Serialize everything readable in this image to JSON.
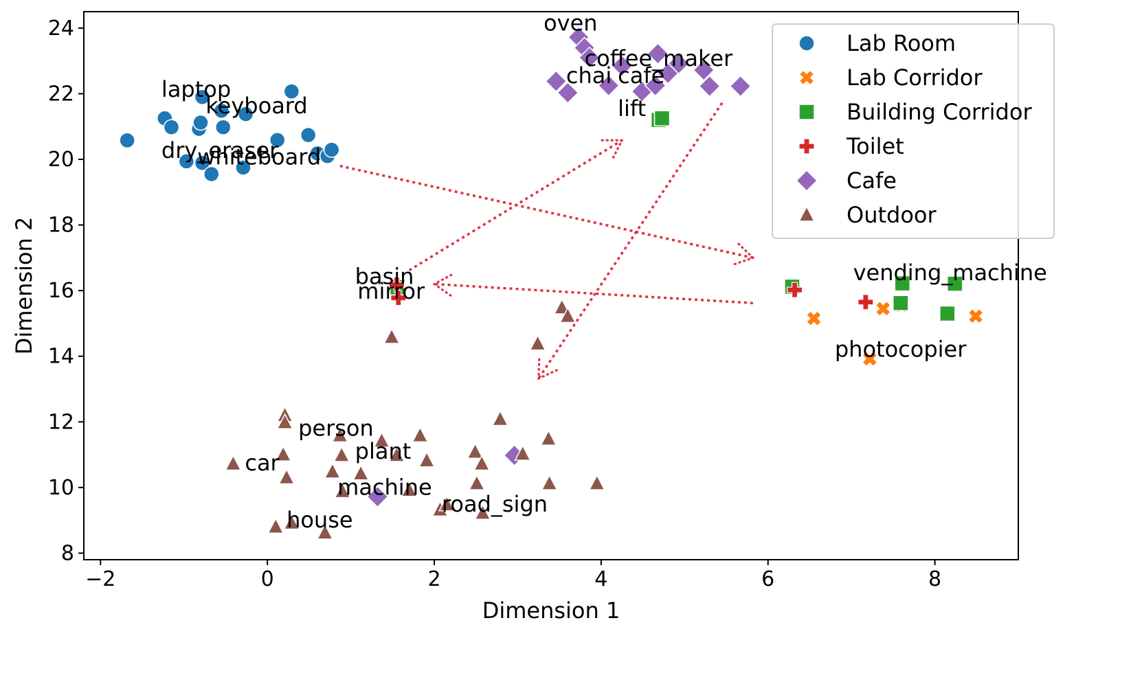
{
  "chart_data": {
    "type": "scatter",
    "title": "",
    "xlabel": "Dimension 1",
    "ylabel": "Dimension 2",
    "xlim": [
      -2.2,
      9.0
    ],
    "ylim": [
      7.8,
      24.5
    ],
    "xticks": [
      -2,
      0,
      2,
      4,
      6,
      8
    ],
    "xtick_labels": [
      "−2",
      "0",
      "2",
      "4",
      "6",
      "8"
    ],
    "yticks": [
      8,
      10,
      12,
      14,
      16,
      18,
      20,
      22,
      24
    ],
    "ytick_labels": [
      "8",
      "10",
      "12",
      "14",
      "16",
      "18",
      "20",
      "22",
      "24"
    ],
    "grid": false,
    "legend_position": "top-right",
    "series": [
      {
        "name": "Lab Room",
        "marker": "circle",
        "color": "#1f77b4",
        "points": [
          [
            -1.68,
            20.58
          ],
          [
            -1.23,
            21.25
          ],
          [
            -1.15,
            20.98
          ],
          [
            -0.97,
            19.94
          ],
          [
            -0.82,
            20.93
          ],
          [
            -0.8,
            21.12
          ],
          [
            -0.78,
            21.9
          ],
          [
            -0.78,
            19.89
          ],
          [
            -0.67,
            19.55
          ],
          [
            -0.55,
            21.48
          ],
          [
            -0.53,
            20.98
          ],
          [
            -0.29,
            19.75
          ],
          [
            -0.26,
            21.38
          ],
          [
            0.12,
            20.59
          ],
          [
            0.29,
            22.07
          ],
          [
            0.49,
            20.74
          ],
          [
            0.6,
            20.18
          ],
          [
            0.72,
            20.1
          ],
          [
            0.77,
            20.29
          ]
        ]
      },
      {
        "name": "Lab Corridor",
        "marker": "x",
        "color": "#ff7f0e",
        "points": [
          [
            6.55,
            15.15
          ],
          [
            7.22,
            13.92
          ],
          [
            7.38,
            15.45
          ],
          [
            7.6,
            15.55
          ],
          [
            8.49,
            15.22
          ]
        ]
      },
      {
        "name": "Building Corridor",
        "marker": "square",
        "color": "#2ca02c",
        "points": [
          [
            4.69,
            21.2
          ],
          [
            4.73,
            21.25
          ],
          [
            1.56,
            16.1
          ],
          [
            6.29,
            16.12
          ],
          [
            7.61,
            16.22
          ],
          [
            7.59,
            15.62
          ],
          [
            8.15,
            15.3
          ],
          [
            8.24,
            16.21
          ]
        ]
      },
      {
        "name": "Toilet",
        "marker": "plus",
        "color": "#d62728",
        "points": [
          [
            1.55,
            16.18
          ],
          [
            1.57,
            15.78
          ],
          [
            6.32,
            16.02
          ],
          [
            7.17,
            15.65
          ]
        ]
      },
      {
        "name": "Cafe",
        "marker": "diamond",
        "color": "#9467bd",
        "points": [
          [
            3.73,
            23.72
          ],
          [
            3.8,
            23.4
          ],
          [
            3.86,
            23.1
          ],
          [
            3.46,
            22.38
          ],
          [
            3.6,
            22.03
          ],
          [
            4.09,
            22.25
          ],
          [
            4.25,
            22.85
          ],
          [
            4.49,
            22.07
          ],
          [
            4.65,
            22.25
          ],
          [
            4.68,
            23.22
          ],
          [
            4.8,
            22.62
          ],
          [
            4.93,
            22.92
          ],
          [
            5.23,
            22.72
          ],
          [
            5.3,
            22.23
          ],
          [
            5.67,
            22.23
          ],
          [
            1.32,
            9.72
          ],
          [
            2.96,
            10.98
          ]
        ]
      },
      {
        "name": "Outdoor",
        "marker": "triangle",
        "color": "#8c564b",
        "points": [
          [
            -0.41,
            10.72
          ],
          [
            0.1,
            8.8
          ],
          [
            0.19,
            11.0
          ],
          [
            0.21,
            12.2
          ],
          [
            0.21,
            11.98
          ],
          [
            0.23,
            10.3
          ],
          [
            0.29,
            8.92
          ],
          [
            0.69,
            8.62
          ],
          [
            0.78,
            10.48
          ],
          [
            0.87,
            11.58
          ],
          [
            0.89,
            10.98
          ],
          [
            0.9,
            9.88
          ],
          [
            1.12,
            10.42
          ],
          [
            1.37,
            11.42
          ],
          [
            1.49,
            14.58
          ],
          [
            1.55,
            10.98
          ],
          [
            1.7,
            9.92
          ],
          [
            1.83,
            11.58
          ],
          [
            1.91,
            10.82
          ],
          [
            2.07,
            9.32
          ],
          [
            2.15,
            9.48
          ],
          [
            2.49,
            11.08
          ],
          [
            2.51,
            10.12
          ],
          [
            2.57,
            10.72
          ],
          [
            2.58,
            9.22
          ],
          [
            2.79,
            12.08
          ],
          [
            3.06,
            11.02
          ],
          [
            3.24,
            14.38
          ],
          [
            3.37,
            11.48
          ],
          [
            3.38,
            10.12
          ],
          [
            3.53,
            15.48
          ],
          [
            3.6,
            15.22
          ],
          [
            3.95,
            10.12
          ]
        ]
      }
    ],
    "annotations": [
      {
        "text": "oven",
        "x": 3.31,
        "y": 23.92
      },
      {
        "text": "coffee_maker",
        "x": 3.8,
        "y": 22.85
      },
      {
        "text": "chai",
        "x": 3.58,
        "y": 22.32
      },
      {
        "text": "cafe",
        "x": 4.2,
        "y": 22.32
      },
      {
        "text": "lift",
        "x": 4.2,
        "y": 21.32
      },
      {
        "text": "laptop",
        "x": -1.27,
        "y": 21.9
      },
      {
        "text": "keyboard",
        "x": -0.74,
        "y": 21.4
      },
      {
        "text": "dry_eraser",
        "x": -1.27,
        "y": 20.04
      },
      {
        "text": "whiteboard",
        "x": -0.84,
        "y": 19.84
      },
      {
        "text": "basin",
        "x": 1.05,
        "y": 16.2
      },
      {
        "text": "mirror",
        "x": 1.08,
        "y": 15.75
      },
      {
        "text": "vending_machine",
        "x": 7.02,
        "y": 16.32
      },
      {
        "text": "photocopier",
        "x": 6.8,
        "y": 13.98
      },
      {
        "text": "person",
        "x": 0.37,
        "y": 11.58
      },
      {
        "text": "plant",
        "x": 1.05,
        "y": 10.88
      },
      {
        "text": "car",
        "x": -0.27,
        "y": 10.52
      },
      {
        "text": "machine",
        "x": 0.84,
        "y": 9.78
      },
      {
        "text": "road_sign",
        "x": 2.09,
        "y": 9.26
      },
      {
        "text": "house",
        "x": 0.23,
        "y": 8.78
      }
    ],
    "arrows": [
      {
        "from": [
          0.87,
          19.8
        ],
        "to": [
          5.82,
          17.0
        ]
      },
      {
        "from": [
          5.82,
          15.62
        ],
        "to": [
          2.0,
          16.2
        ]
      },
      {
        "from": [
          1.7,
          16.62
        ],
        "to": [
          4.25,
          20.58
        ]
      },
      {
        "from": [
          5.45,
          21.72
        ],
        "to": [
          3.25,
          13.32
        ]
      }
    ],
    "arrow_color": "#e0303e"
  }
}
